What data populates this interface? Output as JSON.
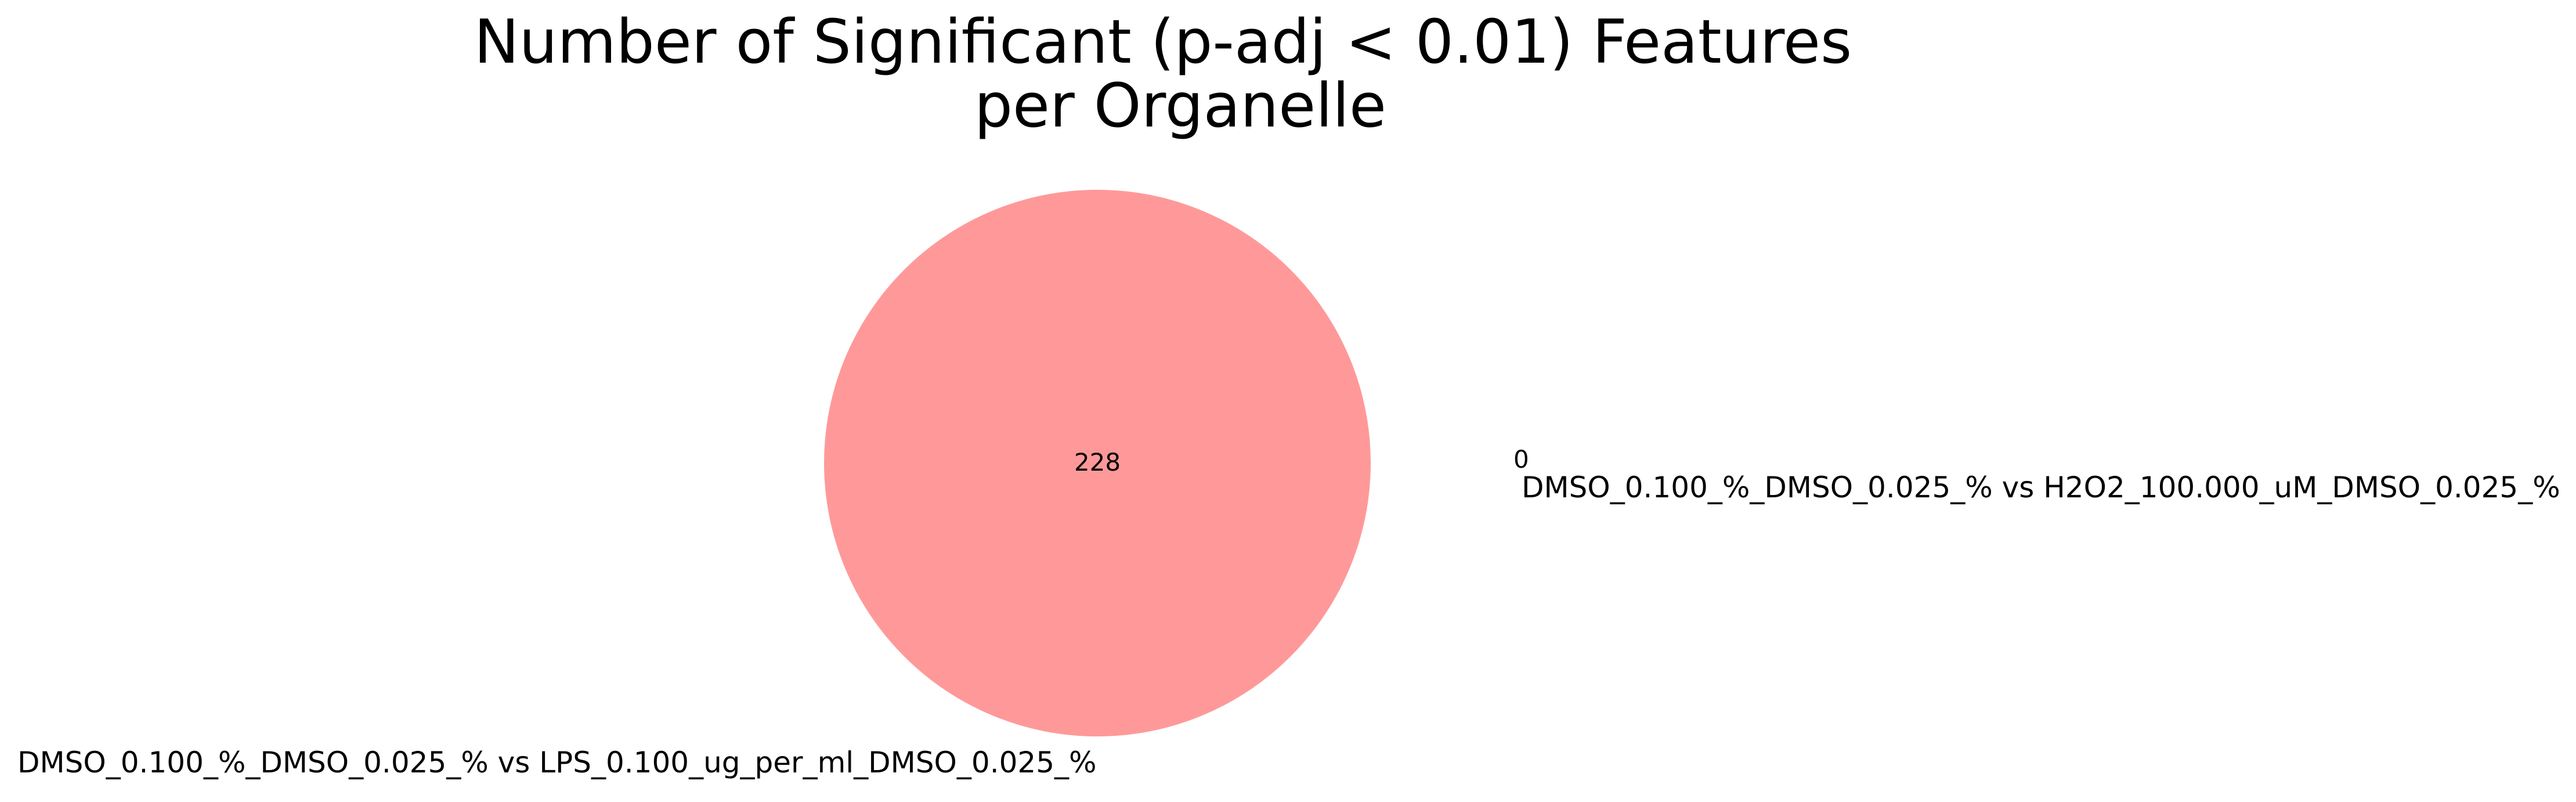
{
  "chart_data": {
    "type": "venn",
    "title": "Number of Significant (p-adj < 0.01) Features per Organelle",
    "title_lines": [
      "Number of Significant (p-adj < 0.01) Features",
      "per Organelle"
    ],
    "sets": [
      {
        "name": "DMSO_0.100_%_DMSO_0.025_% vs LPS_0.100_ug_per_ml_DMSO_0.025_%",
        "size": 228,
        "color": "#ff9999"
      },
      {
        "name": "DMSO_0.100_%_DMSO_0.025_% vs H2O2_100.000_uM_DMSO_0.025_%",
        "size": 0,
        "color": "#99ff99"
      }
    ],
    "regions": [
      {
        "label": "228",
        "value": 228,
        "sets": [
          "A"
        ]
      },
      {
        "label": "0",
        "value": 0,
        "sets": [
          "B"
        ]
      }
    ]
  }
}
